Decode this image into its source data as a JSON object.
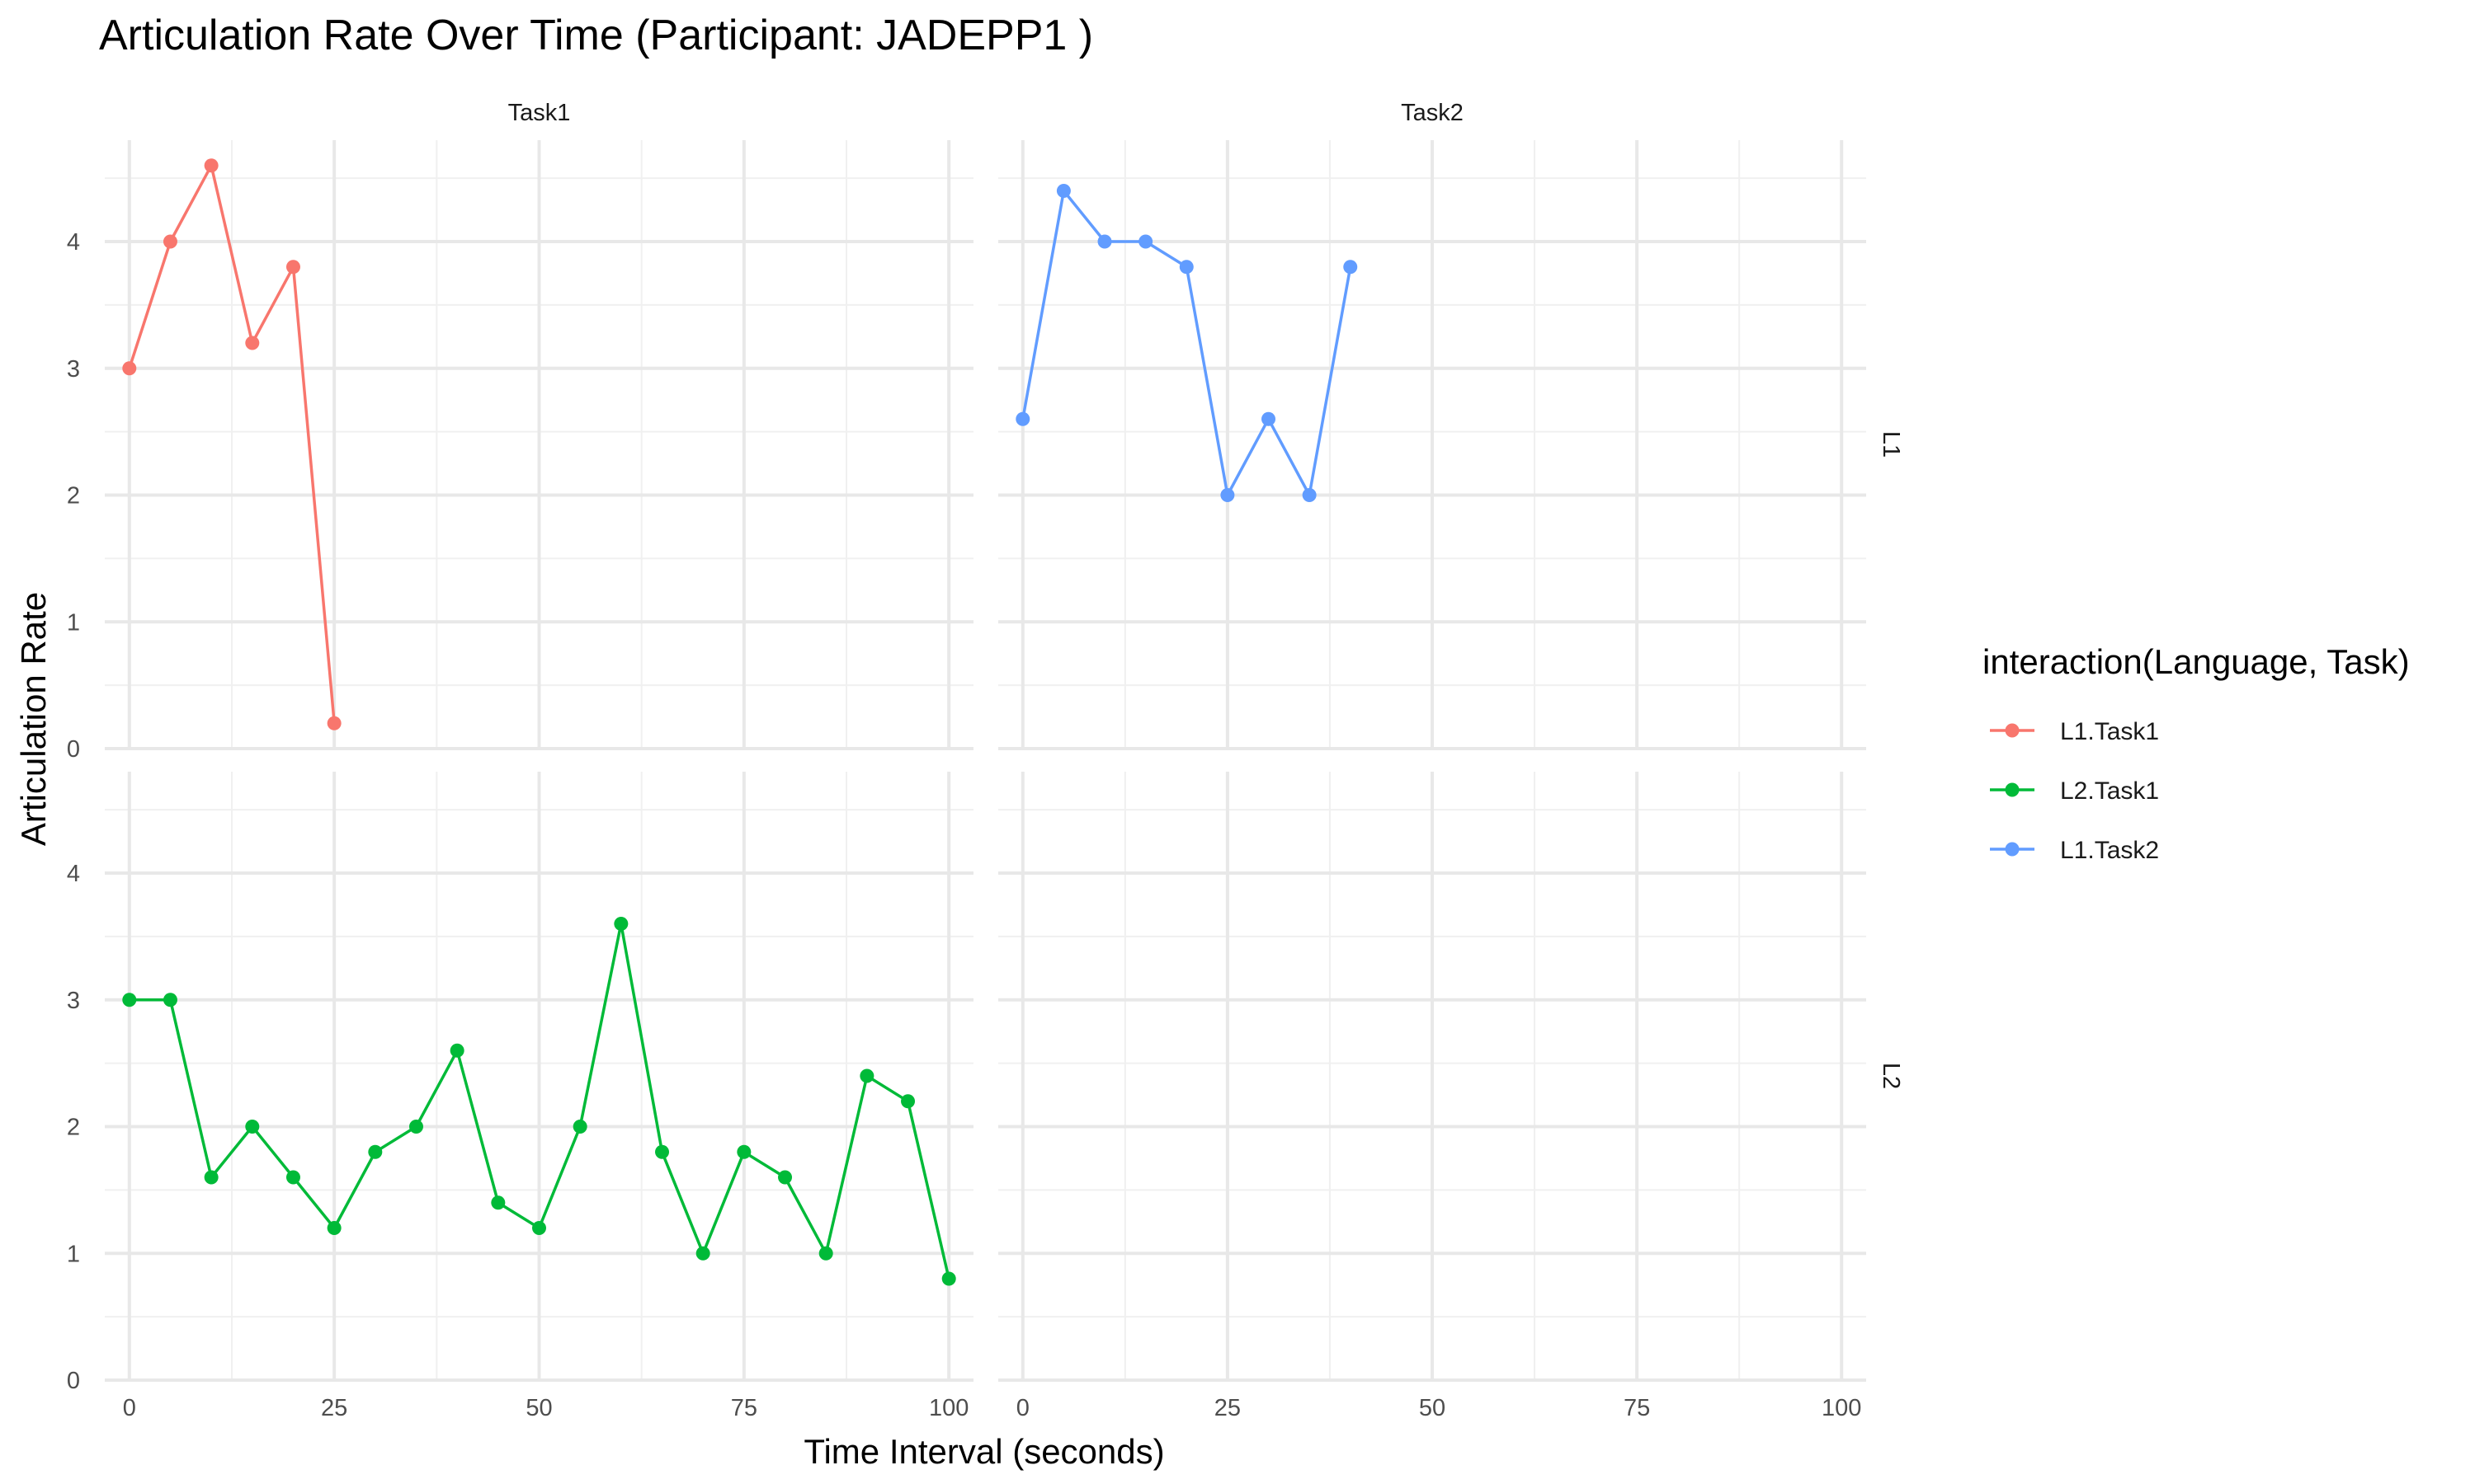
{
  "chart_data": {
    "type": "line",
    "title": "Articulation Rate Over Time (Participant: JADEPP1 )",
    "xlabel": "Time Interval (seconds)",
    "ylabel": "Articulation Rate",
    "xlim": [
      -3,
      103
    ],
    "ylim": [
      0,
      4.8
    ],
    "x_ticks": [
      "0",
      "25",
      "50",
      "75",
      "100"
    ],
    "y_ticks": [
      "0",
      "1",
      "2",
      "3",
      "4"
    ],
    "facet_cols": [
      "Task1",
      "Task2"
    ],
    "facet_rows": [
      "L1",
      "L2"
    ],
    "grid": true,
    "legend": {
      "title": "interaction(Language, Task)",
      "position": "right"
    },
    "series": [
      {
        "name": "L1.Task1",
        "color": "#f8766d",
        "row": "L1",
        "col": "Task1",
        "x": [
          0,
          5,
          10,
          15,
          20,
          25
        ],
        "y": [
          3.0,
          4.0,
          4.6,
          3.2,
          3.8,
          0.2
        ]
      },
      {
        "name": "L2.Task1",
        "color": "#00ba38",
        "row": "L2",
        "col": "Task1",
        "x": [
          0,
          5,
          10,
          15,
          20,
          25,
          30,
          35,
          40,
          45,
          50,
          55,
          60,
          65,
          70,
          75,
          80,
          85,
          90,
          95,
          100
        ],
        "y": [
          3.0,
          3.0,
          1.6,
          2.0,
          1.6,
          1.2,
          1.8,
          2.0,
          2.6,
          1.4,
          1.2,
          2.0,
          3.6,
          1.8,
          1.0,
          1.8,
          1.6,
          1.0,
          2.4,
          2.2,
          0.8
        ]
      },
      {
        "name": "L1.Task2",
        "color": "#619cff",
        "row": "L1",
        "col": "Task2",
        "x": [
          0,
          5,
          10,
          15,
          20,
          25,
          30,
          35,
          40
        ],
        "y": [
          2.6,
          4.4,
          4.0,
          4.0,
          3.8,
          2.0,
          2.6,
          2.0,
          3.8
        ]
      }
    ]
  }
}
